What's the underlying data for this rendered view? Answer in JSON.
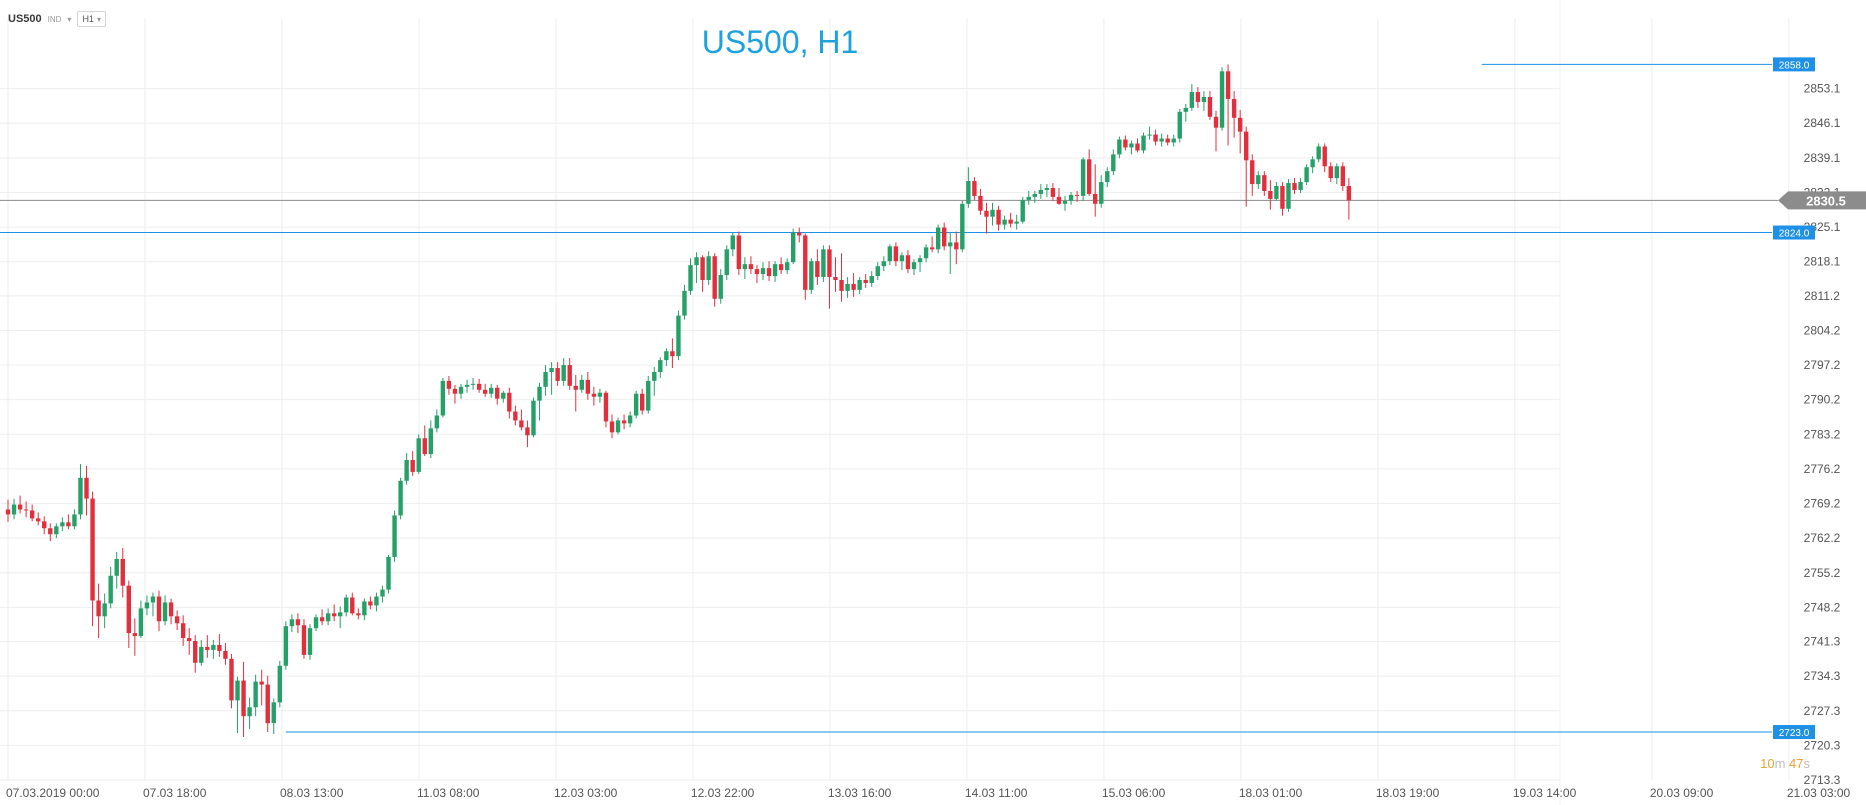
{
  "header": {
    "symbol": "US500",
    "instrument_type": "IND",
    "timeframe": "H1",
    "dropdown_icon": "chevron-down-icon"
  },
  "timer": {
    "minutes": "10",
    "minutes_unit": "m",
    "seconds": "47",
    "seconds_unit": "s"
  },
  "colors": {
    "up": "#26a069",
    "down": "#e0303e",
    "level": "#1e90e6",
    "price": "#8c8c8c",
    "title": "#1ea2de",
    "grid": "#eeeeee"
  },
  "chart_data": {
    "type": "candlestick",
    "title": "US500, H1",
    "y_ticks": [
      "2853.1",
      "2846.1",
      "2839.1",
      "2832.1",
      "2825.1",
      "2818.1",
      "2811.2",
      "2804.2",
      "2797.2",
      "2790.2",
      "2783.2",
      "2776.2",
      "2769.2",
      "2762.2",
      "2755.2",
      "2748.2",
      "2741.3",
      "2734.3",
      "2727.3",
      "2720.3",
      "2713.3"
    ],
    "x_ticks": [
      "07.03.2019  00:00",
      "07.03  18:00",
      "08.03  13:00",
      "11.03  08:00",
      "12.03  03:00",
      "12.03  22:00",
      "13.03  16:00",
      "14.03  11:00",
      "15.03  06:00",
      "18.03  01:00",
      "18.03  19:00",
      "19.03  14:00",
      "20.03  09:00",
      "21.03  03:00"
    ],
    "ylim": [
      2713.3,
      2860.5
    ],
    "grid": true,
    "levels": [
      {
        "label": "2858.0",
        "value": 2858.0,
        "start_bar": 244
      },
      {
        "label": "2824.0",
        "value": 2824.0,
        "start_bar": 0
      },
      {
        "label": "2723.0",
        "value": 2723.0,
        "start_bar": 46
      }
    ],
    "current_price": {
      "label": "2830.5",
      "value": 2830.5
    },
    "candles": [
      [
        2768.0,
        2770.0,
        2765.5,
        2767.0
      ],
      [
        2767.0,
        2770.2,
        2766.0,
        2769.0
      ],
      [
        2769.0,
        2770.8,
        2767.2,
        2768.0
      ],
      [
        2768.0,
        2769.6,
        2766.4,
        2767.8
      ],
      [
        2767.8,
        2769.0,
        2765.6,
        2766.2
      ],
      [
        2766.2,
        2767.4,
        2764.8,
        2765.6
      ],
      [
        2765.6,
        2766.6,
        2763.0,
        2764.2
      ],
      [
        2764.2,
        2765.2,
        2761.6,
        2763.0
      ],
      [
        2763.0,
        2765.2,
        2762.2,
        2764.6
      ],
      [
        2764.6,
        2766.4,
        2763.6,
        2765.4
      ],
      [
        2765.4,
        2767.0,
        2764.0,
        2764.6
      ],
      [
        2764.6,
        2768.0,
        2764.0,
        2767.0
      ],
      [
        2767.0,
        2777.2,
        2766.0,
        2774.4
      ],
      [
        2774.4,
        2776.8,
        2766.8,
        2770.2
      ],
      [
        2770.2,
        2771.6,
        2744.4,
        2749.6
      ],
      [
        2749.6,
        2753.0,
        2742.0,
        2746.4
      ],
      [
        2746.4,
        2751.0,
        2744.0,
        2749.0
      ],
      [
        2749.0,
        2756.4,
        2748.0,
        2754.6
      ],
      [
        2754.6,
        2759.4,
        2752.0,
        2758.0
      ],
      [
        2758.0,
        2760.2,
        2750.2,
        2752.6
      ],
      [
        2752.6,
        2753.6,
        2740.0,
        2743.0
      ],
      [
        2743.0,
        2746.0,
        2738.4,
        2742.4
      ],
      [
        2742.4,
        2749.6,
        2742.0,
        2748.0
      ],
      [
        2748.0,
        2750.6,
        2746.6,
        2749.2
      ],
      [
        2749.2,
        2751.2,
        2746.4,
        2750.4
      ],
      [
        2750.4,
        2751.6,
        2743.4,
        2745.4
      ],
      [
        2745.4,
        2750.6,
        2744.6,
        2749.2
      ],
      [
        2749.2,
        2750.0,
        2744.8,
        2746.4
      ],
      [
        2746.4,
        2747.6,
        2743.6,
        2745.0
      ],
      [
        2745.0,
        2746.6,
        2740.4,
        2742.0
      ],
      [
        2742.0,
        2744.0,
        2738.6,
        2741.4
      ],
      [
        2741.4,
        2742.6,
        2735.0,
        2737.0
      ],
      [
        2737.0,
        2741.6,
        2736.4,
        2740.2
      ],
      [
        2740.2,
        2742.6,
        2738.0,
        2739.6
      ],
      [
        2739.6,
        2741.6,
        2737.8,
        2740.6
      ],
      [
        2740.6,
        2742.8,
        2738.2,
        2739.4
      ],
      [
        2739.4,
        2741.0,
        2736.6,
        2737.8
      ],
      [
        2737.8,
        2738.8,
        2727.8,
        2729.4
      ],
      [
        2729.4,
        2734.2,
        2722.8,
        2733.4
      ],
      [
        2733.4,
        2737.2,
        2722.0,
        2726.2
      ],
      [
        2726.2,
        2730.0,
        2723.6,
        2728.0
      ],
      [
        2728.0,
        2734.6,
        2726.2,
        2733.2
      ],
      [
        2733.2,
        2735.6,
        2728.4,
        2732.6
      ],
      [
        2732.6,
        2734.4,
        2723.0,
        2724.8
      ],
      [
        2724.8,
        2729.8,
        2722.6,
        2729.0
      ],
      [
        2729.0,
        2737.4,
        2728.0,
        2736.4
      ],
      [
        2736.4,
        2745.4,
        2735.6,
        2744.4
      ],
      [
        2744.4,
        2746.8,
        2743.2,
        2745.8
      ],
      [
        2745.8,
        2747.0,
        2743.0,
        2744.6
      ],
      [
        2744.6,
        2745.8,
        2737.8,
        2738.6
      ],
      [
        2738.6,
        2744.8,
        2737.6,
        2744.0
      ],
      [
        2744.0,
        2746.8,
        2743.4,
        2746.2
      ],
      [
        2746.2,
        2747.8,
        2744.6,
        2745.4
      ],
      [
        2745.4,
        2748.0,
        2744.6,
        2747.0
      ],
      [
        2747.0,
        2748.8,
        2745.4,
        2746.4
      ],
      [
        2746.4,
        2748.4,
        2744.0,
        2747.2
      ],
      [
        2747.2,
        2750.8,
        2746.4,
        2750.2
      ],
      [
        2750.2,
        2751.2,
        2746.6,
        2747.0
      ],
      [
        2747.0,
        2748.0,
        2745.8,
        2746.6
      ],
      [
        2746.6,
        2750.0,
        2745.6,
        2749.4
      ],
      [
        2749.4,
        2750.4,
        2747.8,
        2748.6
      ],
      [
        2748.6,
        2751.2,
        2747.4,
        2750.4
      ],
      [
        2750.4,
        2752.6,
        2749.2,
        2751.8
      ],
      [
        2751.8,
        2758.8,
        2751.0,
        2758.4
      ],
      [
        2758.4,
        2767.8,
        2757.4,
        2766.8
      ],
      [
        2766.8,
        2774.4,
        2766.0,
        2773.8
      ],
      [
        2773.8,
        2779.4,
        2773.0,
        2778.0
      ],
      [
        2778.0,
        2779.8,
        2774.8,
        2775.6
      ],
      [
        2775.6,
        2783.2,
        2775.2,
        2782.4
      ],
      [
        2782.4,
        2785.0,
        2778.8,
        2779.2
      ],
      [
        2779.2,
        2786.0,
        2778.4,
        2784.4
      ],
      [
        2784.4,
        2788.2,
        2783.6,
        2787.0
      ],
      [
        2787.0,
        2794.6,
        2786.6,
        2794.0
      ],
      [
        2794.0,
        2795.0,
        2791.2,
        2792.4
      ],
      [
        2792.4,
        2793.2,
        2789.4,
        2791.4
      ],
      [
        2791.4,
        2793.4,
        2790.4,
        2792.8
      ],
      [
        2792.8,
        2794.2,
        2791.6,
        2793.2
      ],
      [
        2793.2,
        2794.6,
        2792.2,
        2793.4
      ],
      [
        2793.4,
        2794.4,
        2791.6,
        2792.2
      ],
      [
        2792.2,
        2793.4,
        2790.8,
        2791.4
      ],
      [
        2791.4,
        2793.4,
        2790.6,
        2792.6
      ],
      [
        2792.6,
        2793.2,
        2789.2,
        2790.4
      ],
      [
        2790.4,
        2792.0,
        2789.6,
        2791.6
      ],
      [
        2791.6,
        2792.6,
        2786.4,
        2787.8
      ],
      [
        2787.8,
        2789.0,
        2785.0,
        2786.0
      ],
      [
        2786.0,
        2788.2,
        2784.0,
        2784.6
      ],
      [
        2784.6,
        2786.0,
        2780.6,
        2783.0
      ],
      [
        2783.0,
        2790.6,
        2782.6,
        2790.0
      ],
      [
        2790.0,
        2793.6,
        2786.0,
        2792.8
      ],
      [
        2792.8,
        2797.2,
        2791.0,
        2795.8
      ],
      [
        2795.8,
        2797.8,
        2791.2,
        2796.6
      ],
      [
        2796.6,
        2797.8,
        2793.0,
        2794.0
      ],
      [
        2794.0,
        2798.6,
        2793.0,
        2797.2
      ],
      [
        2797.2,
        2798.6,
        2792.2,
        2793.0
      ],
      [
        2793.0,
        2795.2,
        2787.8,
        2792.2
      ],
      [
        2792.2,
        2795.2,
        2791.6,
        2794.2
      ],
      [
        2794.2,
        2795.8,
        2790.2,
        2791.4
      ],
      [
        2791.4,
        2792.8,
        2789.0,
        2790.8
      ],
      [
        2790.8,
        2792.4,
        2789.6,
        2791.6
      ],
      [
        2791.6,
        2792.0,
        2784.6,
        2785.8
      ],
      [
        2785.8,
        2787.2,
        2782.4,
        2783.6
      ],
      [
        2783.6,
        2786.6,
        2783.2,
        2786.0
      ],
      [
        2786.0,
        2787.2,
        2784.2,
        2785.4
      ],
      [
        2785.4,
        2787.8,
        2784.6,
        2787.0
      ],
      [
        2787.0,
        2792.0,
        2786.4,
        2791.4
      ],
      [
        2791.4,
        2792.4,
        2787.2,
        2788.0
      ],
      [
        2788.0,
        2795.0,
        2787.4,
        2794.0
      ],
      [
        2794.0,
        2796.8,
        2791.0,
        2795.8
      ],
      [
        2795.8,
        2798.8,
        2794.6,
        2798.2
      ],
      [
        2798.2,
        2800.6,
        2797.0,
        2800.0
      ],
      [
        2800.0,
        2802.6,
        2796.6,
        2799.0
      ],
      [
        2799.0,
        2808.2,
        2798.2,
        2807.2
      ],
      [
        2807.2,
        2813.4,
        2806.4,
        2812.2
      ],
      [
        2812.2,
        2818.8,
        2811.4,
        2817.4
      ],
      [
        2817.4,
        2820.0,
        2813.8,
        2819.0
      ],
      [
        2819.0,
        2819.4,
        2812.0,
        2814.4
      ],
      [
        2814.4,
        2820.2,
        2813.4,
        2819.2
      ],
      [
        2819.2,
        2819.8,
        2809.0,
        2810.6
      ],
      [
        2810.6,
        2816.6,
        2809.6,
        2815.4
      ],
      [
        2815.4,
        2821.4,
        2814.4,
        2820.6
      ],
      [
        2820.6,
        2824.0,
        2819.2,
        2823.4
      ],
      [
        2823.4,
        2824.2,
        2815.4,
        2816.6
      ],
      [
        2816.6,
        2819.0,
        2814.6,
        2817.6
      ],
      [
        2817.6,
        2819.2,
        2815.6,
        2816.6
      ],
      [
        2816.6,
        2817.4,
        2813.8,
        2815.6
      ],
      [
        2815.6,
        2818.0,
        2814.4,
        2816.8
      ],
      [
        2816.8,
        2818.2,
        2814.2,
        2815.2
      ],
      [
        2815.2,
        2818.2,
        2814.0,
        2817.6
      ],
      [
        2817.6,
        2819.0,
        2815.6,
        2816.4
      ],
      [
        2816.4,
        2818.8,
        2815.6,
        2818.0
      ],
      [
        2818.0,
        2824.8,
        2817.6,
        2824.0
      ],
      [
        2824.0,
        2825.0,
        2822.0,
        2823.4
      ],
      [
        2823.4,
        2823.8,
        2810.4,
        2812.4
      ],
      [
        2812.4,
        2818.8,
        2811.6,
        2818.2
      ],
      [
        2818.2,
        2820.6,
        2813.4,
        2815.0
      ],
      [
        2815.0,
        2821.4,
        2814.0,
        2820.6
      ],
      [
        2820.6,
        2821.4,
        2808.6,
        2815.0
      ],
      [
        2815.0,
        2819.0,
        2812.0,
        2814.4
      ],
      [
        2814.4,
        2819.8,
        2810.0,
        2812.2
      ],
      [
        2812.2,
        2815.0,
        2810.8,
        2813.6
      ],
      [
        2813.6,
        2815.8,
        2811.0,
        2812.4
      ],
      [
        2812.4,
        2815.0,
        2811.6,
        2814.4
      ],
      [
        2814.4,
        2815.6,
        2812.8,
        2813.8
      ],
      [
        2813.8,
        2816.2,
        2813.0,
        2815.2
      ],
      [
        2815.2,
        2818.0,
        2814.4,
        2817.2
      ],
      [
        2817.2,
        2819.2,
        2816.2,
        2818.2
      ],
      [
        2818.2,
        2821.6,
        2817.4,
        2821.2
      ],
      [
        2821.2,
        2822.0,
        2817.2,
        2818.2
      ],
      [
        2818.2,
        2820.0,
        2816.4,
        2819.4
      ],
      [
        2819.4,
        2820.4,
        2815.8,
        2816.6
      ],
      [
        2816.6,
        2818.6,
        2815.4,
        2818.0
      ],
      [
        2818.0,
        2819.4,
        2816.0,
        2818.8
      ],
      [
        2818.8,
        2821.6,
        2818.0,
        2821.0
      ],
      [
        2821.0,
        2823.2,
        2820.0,
        2820.6
      ],
      [
        2820.6,
        2825.6,
        2819.8,
        2825.0
      ],
      [
        2825.0,
        2826.0,
        2820.4,
        2821.2
      ],
      [
        2821.2,
        2824.0,
        2815.6,
        2822.0
      ],
      [
        2822.0,
        2824.2,
        2817.6,
        2820.6
      ],
      [
        2820.6,
        2830.4,
        2820.0,
        2829.8
      ],
      [
        2829.8,
        2837.2,
        2829.0,
        2834.4
      ],
      [
        2834.4,
        2835.2,
        2830.6,
        2831.4
      ],
      [
        2831.4,
        2832.8,
        2827.6,
        2828.4
      ],
      [
        2828.4,
        2830.0,
        2823.8,
        2827.2
      ],
      [
        2827.2,
        2830.0,
        2825.4,
        2828.6
      ],
      [
        2828.6,
        2829.4,
        2824.4,
        2825.6
      ],
      [
        2825.6,
        2827.4,
        2824.6,
        2826.6
      ],
      [
        2826.6,
        2828.0,
        2825.0,
        2825.8
      ],
      [
        2825.8,
        2827.6,
        2824.6,
        2826.2
      ],
      [
        2826.2,
        2831.2,
        2825.8,
        2830.6
      ],
      [
        2830.6,
        2832.4,
        2829.6,
        2831.2
      ],
      [
        2831.2,
        2832.4,
        2830.0,
        2831.8
      ],
      [
        2831.8,
        2833.8,
        2830.8,
        2832.6
      ],
      [
        2832.6,
        2833.8,
        2831.2,
        2833.0
      ],
      [
        2833.0,
        2834.0,
        2830.4,
        2831.2
      ],
      [
        2831.2,
        2833.0,
        2829.6,
        2829.8
      ],
      [
        2829.8,
        2831.4,
        2828.4,
        2830.4
      ],
      [
        2830.4,
        2832.2,
        2829.6,
        2831.6
      ],
      [
        2831.6,
        2832.4,
        2830.2,
        2831.4
      ],
      [
        2831.4,
        2839.2,
        2830.4,
        2838.8
      ],
      [
        2838.8,
        2840.8,
        2831.4,
        2831.8
      ],
      [
        2831.8,
        2837.8,
        2827.2,
        2829.8
      ],
      [
        2829.8,
        2835.6,
        2829.0,
        2834.2
      ],
      [
        2834.2,
        2837.2,
        2833.2,
        2836.4
      ],
      [
        2836.4,
        2840.8,
        2835.6,
        2839.8
      ],
      [
        2839.8,
        2843.4,
        2839.0,
        2842.8
      ],
      [
        2842.8,
        2843.6,
        2840.6,
        2841.2
      ],
      [
        2841.2,
        2842.6,
        2839.8,
        2842.0
      ],
      [
        2842.0,
        2843.0,
        2840.2,
        2840.6
      ],
      [
        2840.6,
        2844.2,
        2840.0,
        2843.6
      ],
      [
        2843.6,
        2845.4,
        2842.8,
        2843.8
      ],
      [
        2843.8,
        2844.8,
        2841.6,
        2842.4
      ],
      [
        2842.4,
        2844.0,
        2841.4,
        2843.0
      ],
      [
        2843.0,
        2843.8,
        2841.6,
        2842.2
      ],
      [
        2842.2,
        2843.8,
        2841.4,
        2843.0
      ],
      [
        2843.0,
        2849.0,
        2842.2,
        2848.4
      ],
      [
        2848.4,
        2850.0,
        2846.4,
        2849.2
      ],
      [
        2849.2,
        2854.0,
        2848.6,
        2852.4
      ],
      [
        2852.4,
        2853.4,
        2849.2,
        2850.4
      ],
      [
        2850.4,
        2852.6,
        2848.6,
        2851.4
      ],
      [
        2851.4,
        2852.6,
        2846.8,
        2847.4
      ],
      [
        2847.4,
        2848.6,
        2840.4,
        2845.2
      ],
      [
        2845.2,
        2857.4,
        2844.6,
        2856.6
      ],
      [
        2856.6,
        2858.0,
        2841.6,
        2851.0
      ],
      [
        2851.0,
        2852.6,
        2843.2,
        2847.2
      ],
      [
        2847.2,
        2848.8,
        2840.0,
        2844.4
      ],
      [
        2844.4,
        2845.4,
        2829.2,
        2838.6
      ],
      [
        2838.6,
        2839.8,
        2831.4,
        2833.8
      ],
      [
        2833.8,
        2836.4,
        2832.8,
        2835.6
      ],
      [
        2835.6,
        2836.4,
        2831.4,
        2832.4
      ],
      [
        2832.4,
        2834.6,
        2828.6,
        2830.8
      ],
      [
        2830.8,
        2834.2,
        2830.4,
        2833.4
      ],
      [
        2833.4,
        2834.2,
        2827.4,
        2828.8
      ],
      [
        2828.8,
        2834.8,
        2828.2,
        2834.0
      ],
      [
        2834.0,
        2835.0,
        2831.8,
        2832.6
      ],
      [
        2832.6,
        2835.0,
        2832.0,
        2834.2
      ],
      [
        2834.2,
        2837.8,
        2833.6,
        2837.2
      ],
      [
        2837.2,
        2839.4,
        2836.0,
        2838.8
      ],
      [
        2838.8,
        2842.0,
        2838.2,
        2841.4
      ],
      [
        2841.4,
        2842.0,
        2836.2,
        2837.4
      ],
      [
        2837.4,
        2838.2,
        2834.2,
        2835.0
      ],
      [
        2835.0,
        2838.0,
        2833.8,
        2837.4
      ],
      [
        2837.4,
        2838.2,
        2832.4,
        2833.4
      ],
      [
        2833.4,
        2835.0,
        2826.6,
        2830.5
      ]
    ]
  }
}
